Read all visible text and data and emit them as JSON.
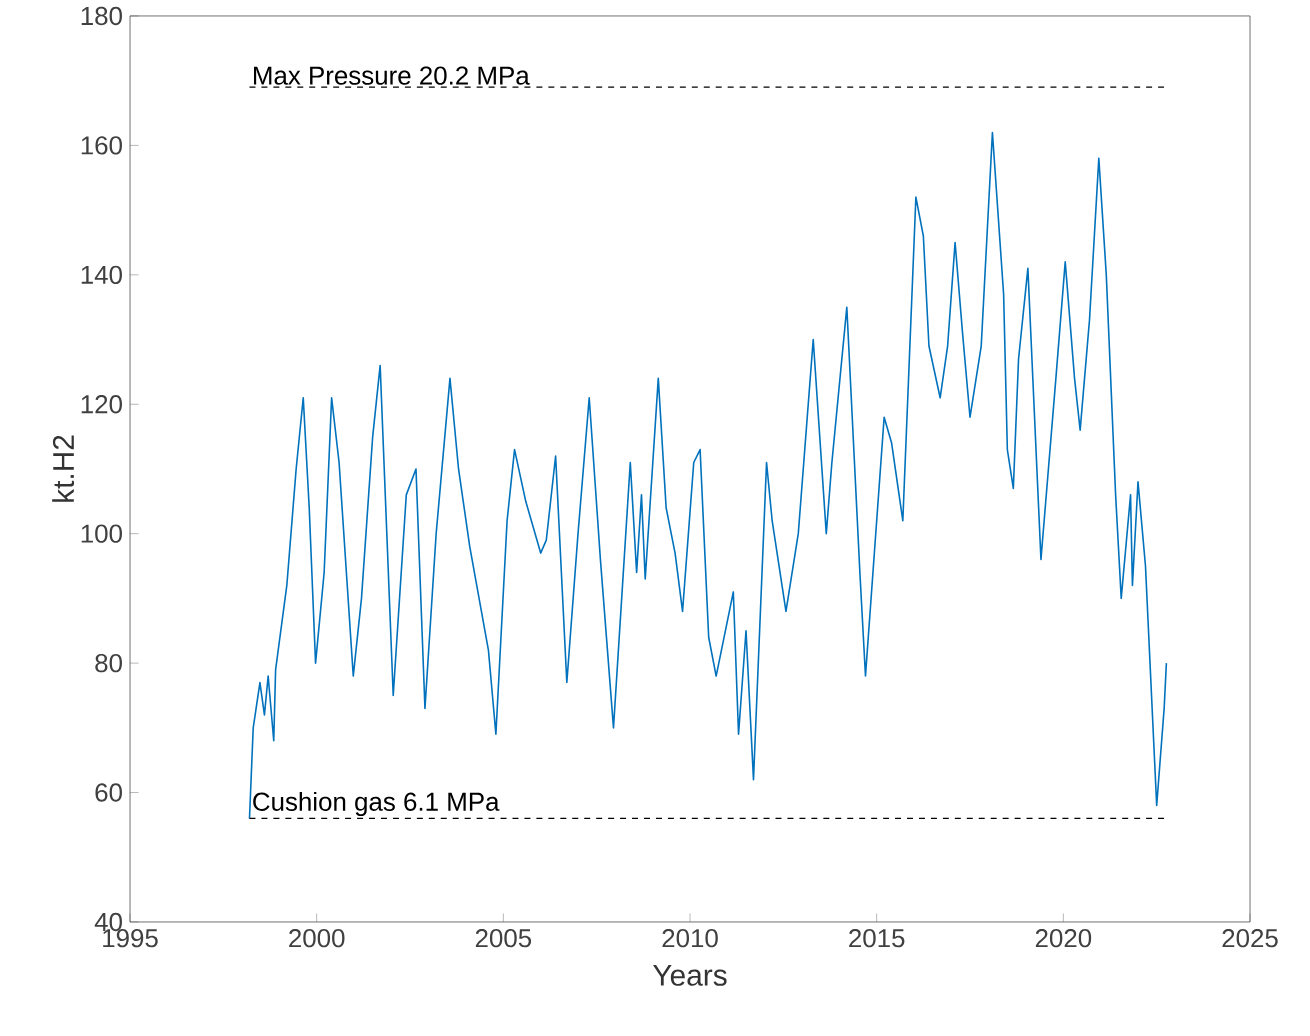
{
  "chart_data": {
    "type": "line",
    "xlabel": "Years",
    "ylabel": "kt.H2",
    "series": [
      {
        "color": "#0072bd",
        "x": [
          1998.2,
          1998.3,
          1998.48,
          1998.6,
          1998.7,
          1998.85,
          1998.9,
          1999.2,
          1999.45,
          1999.64,
          1999.8,
          1999.97,
          2000.2,
          2000.4,
          2000.6,
          2000.98,
          2001.2,
          2001.5,
          2001.7,
          2002.05,
          2002.4,
          2002.66,
          2002.9,
          2003.2,
          2003.57,
          2003.8,
          2004.1,
          2004.6,
          2004.8,
          2005.1,
          2005.3,
          2005.6,
          2006.0,
          2006.15,
          2006.4,
          2006.7,
          2007.0,
          2007.3,
          2007.6,
          2007.95,
          2008.4,
          2008.57,
          2008.7,
          2008.8,
          2009.15,
          2009.36,
          2009.6,
          2009.8,
          2010.1,
          2010.27,
          2010.5,
          2010.7,
          2011.16,
          2011.3,
          2011.5,
          2011.7,
          2012.05,
          2012.2,
          2012.57,
          2012.9,
          2013.3,
          2013.65,
          2013.8,
          2014.2,
          2014.55,
          2014.7,
          2015.2,
          2015.4,
          2015.7,
          2016.05,
          2016.25,
          2016.4,
          2016.7,
          2016.9,
          2017.1,
          2017.3,
          2017.5,
          2017.8,
          2018.1,
          2018.4,
          2018.5,
          2018.66,
          2018.8,
          2019.05,
          2019.4,
          2019.8,
          2020.05,
          2020.3,
          2020.45,
          2020.7,
          2020.95,
          2021.15,
          2021.4,
          2021.55,
          2021.8,
          2021.85,
          2022.0,
          2022.2,
          2022.5,
          2022.7,
          2022.76
        ],
        "values": [
          56,
          70,
          77,
          72,
          78,
          68,
          79,
          92,
          110,
          121,
          104,
          80,
          94,
          121,
          111,
          78,
          90,
          115,
          126,
          75,
          106,
          110,
          73,
          100,
          124,
          110,
          98,
          82,
          69,
          102,
          113,
          105,
          97,
          99,
          112,
          77,
          100,
          121,
          96,
          70,
          111,
          94,
          106,
          93,
          124,
          104,
          97,
          88,
          111,
          113,
          84,
          78,
          91,
          69,
          85,
          62,
          111,
          102,
          88,
          100,
          130,
          100,
          111,
          135,
          94,
          78,
          118,
          114,
          102,
          152,
          146,
          129,
          121,
          129,
          145,
          131,
          118,
          129,
          162,
          137,
          113,
          107,
          127,
          141,
          96,
          124,
          142,
          124,
          116,
          133,
          158,
          140,
          106,
          90,
          106,
          92,
          108,
          95,
          58,
          73,
          80
        ]
      }
    ],
    "xlim": [
      1995,
      2025
    ],
    "ylim": [
      40,
      180
    ],
    "xticks": [
      1995,
      2000,
      2005,
      2010,
      2015,
      2020,
      2025
    ],
    "yticks": [
      40,
      60,
      80,
      100,
      120,
      140,
      160,
      180
    ],
    "grid": false,
    "marker": "none",
    "line_style": "solid",
    "ref_lines": [
      {
        "axis": "y",
        "value": 169,
        "label": "Max Pressure 20.2 MPa",
        "line_style": "dashed",
        "color": "#000000"
      },
      {
        "axis": "y",
        "value": 56,
        "label": "Cushion gas 6.1 MPa",
        "line_style": "dashed",
        "color": "#000000"
      }
    ]
  }
}
